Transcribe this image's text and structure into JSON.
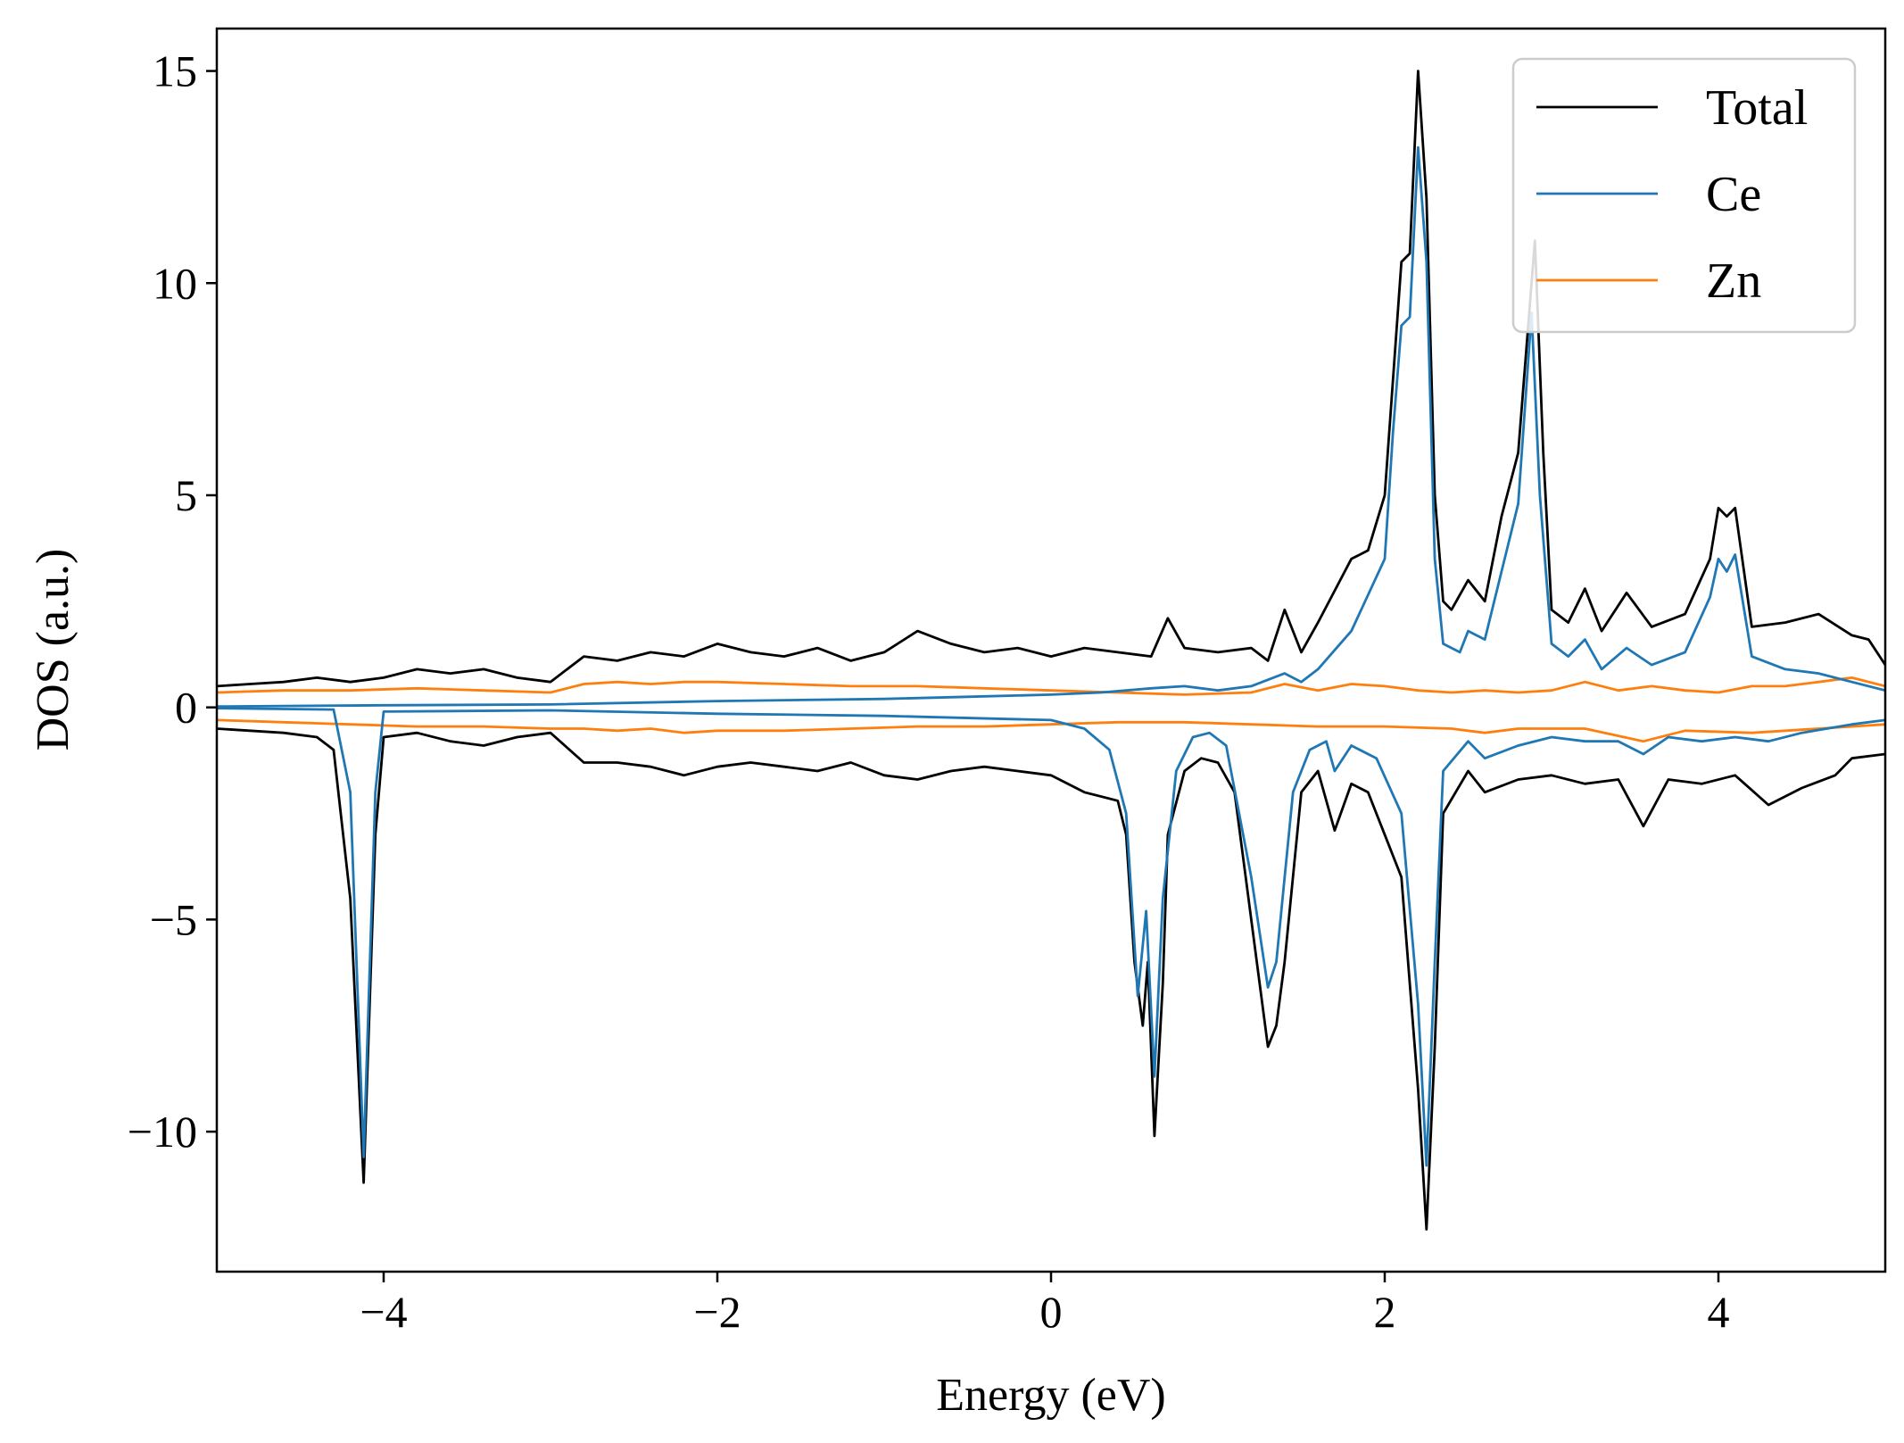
{
  "chart_data": {
    "type": "line",
    "xlabel": "Energy (eV)",
    "ylabel": "DOS (a.u.)",
    "xlim": [
      -5,
      5
    ],
    "ylim": [
      -13.3,
      16.0
    ],
    "x_ticks": [
      -4,
      -2,
      0,
      2,
      4
    ],
    "x_tick_labels": [
      "−4",
      "−2",
      "0",
      "2",
      "4"
    ],
    "y_ticks": [
      -10,
      -5,
      0,
      5,
      10,
      15
    ],
    "y_tick_labels": [
      "−10",
      "−5",
      "0",
      "5",
      "10",
      "15"
    ],
    "grid": false,
    "legend_position": "top-right",
    "legend": [
      "Total",
      "Ce",
      "Zn"
    ],
    "colors": {
      "Total": "#000000",
      "Ce": "#1f77b4",
      "Zn": "#ff7f0e"
    },
    "series": [
      {
        "name": "Total",
        "color": "#000000",
        "spin_up": [
          [
            -5.0,
            0.5
          ],
          [
            -4.8,
            0.55
          ],
          [
            -4.6,
            0.6
          ],
          [
            -4.4,
            0.7
          ],
          [
            -4.2,
            0.6
          ],
          [
            -4.0,
            0.7
          ],
          [
            -3.8,
            0.9
          ],
          [
            -3.6,
            0.8
          ],
          [
            -3.4,
            0.9
          ],
          [
            -3.2,
            0.7
          ],
          [
            -3.0,
            0.6
          ],
          [
            -2.8,
            1.2
          ],
          [
            -2.6,
            1.1
          ],
          [
            -2.4,
            1.3
          ],
          [
            -2.2,
            1.2
          ],
          [
            -2.0,
            1.5
          ],
          [
            -1.8,
            1.3
          ],
          [
            -1.6,
            1.2
          ],
          [
            -1.4,
            1.4
          ],
          [
            -1.2,
            1.1
          ],
          [
            -1.0,
            1.3
          ],
          [
            -0.8,
            1.8
          ],
          [
            -0.6,
            1.5
          ],
          [
            -0.4,
            1.3
          ],
          [
            -0.2,
            1.4
          ],
          [
            0.0,
            1.2
          ],
          [
            0.2,
            1.4
          ],
          [
            0.4,
            1.3
          ],
          [
            0.6,
            1.2
          ],
          [
            0.7,
            2.1
          ],
          [
            0.8,
            1.4
          ],
          [
            1.0,
            1.3
          ],
          [
            1.2,
            1.4
          ],
          [
            1.3,
            1.1
          ],
          [
            1.4,
            2.3
          ],
          [
            1.5,
            1.3
          ],
          [
            1.6,
            2.0
          ],
          [
            1.8,
            3.5
          ],
          [
            1.9,
            3.7
          ],
          [
            2.0,
            5.0
          ],
          [
            2.1,
            10.5
          ],
          [
            2.15,
            10.7
          ],
          [
            2.2,
            15.0
          ],
          [
            2.25,
            12.0
          ],
          [
            2.3,
            5.0
          ],
          [
            2.35,
            2.5
          ],
          [
            2.4,
            2.3
          ],
          [
            2.5,
            3.0
          ],
          [
            2.6,
            2.5
          ],
          [
            2.7,
            4.5
          ],
          [
            2.8,
            6.0
          ],
          [
            2.9,
            11.0
          ],
          [
            2.95,
            6.0
          ],
          [
            3.0,
            2.3
          ],
          [
            3.1,
            2.0
          ],
          [
            3.2,
            2.8
          ],
          [
            3.3,
            1.8
          ],
          [
            3.45,
            2.7
          ],
          [
            3.6,
            1.9
          ],
          [
            3.8,
            2.2
          ],
          [
            3.95,
            3.5
          ],
          [
            4.0,
            4.7
          ],
          [
            4.05,
            4.5
          ],
          [
            4.1,
            4.7
          ],
          [
            4.2,
            1.9
          ],
          [
            4.4,
            2.0
          ],
          [
            4.6,
            2.2
          ],
          [
            4.8,
            1.7
          ],
          [
            4.9,
            1.6
          ],
          [
            5.0,
            1.0
          ]
        ],
        "spin_down": [
          [
            -5.0,
            -0.5
          ],
          [
            -4.6,
            -0.6
          ],
          [
            -4.4,
            -0.7
          ],
          [
            -4.3,
            -1.0
          ],
          [
            -4.2,
            -4.5
          ],
          [
            -4.12,
            -11.2
          ],
          [
            -4.05,
            -3.0
          ],
          [
            -4.0,
            -0.7
          ],
          [
            -3.8,
            -0.6
          ],
          [
            -3.6,
            -0.8
          ],
          [
            -3.4,
            -0.9
          ],
          [
            -3.2,
            -0.7
          ],
          [
            -3.0,
            -0.6
          ],
          [
            -2.8,
            -1.3
          ],
          [
            -2.6,
            -1.3
          ],
          [
            -2.4,
            -1.4
          ],
          [
            -2.2,
            -1.6
          ],
          [
            -2.0,
            -1.4
          ],
          [
            -1.8,
            -1.3
          ],
          [
            -1.6,
            -1.4
          ],
          [
            -1.4,
            -1.5
          ],
          [
            -1.2,
            -1.3
          ],
          [
            -1.0,
            -1.6
          ],
          [
            -0.8,
            -1.7
          ],
          [
            -0.6,
            -1.5
          ],
          [
            -0.4,
            -1.4
          ],
          [
            -0.2,
            -1.5
          ],
          [
            0.0,
            -1.6
          ],
          [
            0.2,
            -2.0
          ],
          [
            0.4,
            -2.2
          ],
          [
            0.45,
            -3.0
          ],
          [
            0.5,
            -6.0
          ],
          [
            0.55,
            -7.5
          ],
          [
            0.58,
            -6.0
          ],
          [
            0.62,
            -10.1
          ],
          [
            0.67,
            -6.5
          ],
          [
            0.7,
            -3.0
          ],
          [
            0.8,
            -1.5
          ],
          [
            0.9,
            -1.2
          ],
          [
            1.0,
            -1.3
          ],
          [
            1.1,
            -2.0
          ],
          [
            1.2,
            -5.0
          ],
          [
            1.3,
            -8.0
          ],
          [
            1.35,
            -7.5
          ],
          [
            1.4,
            -6.0
          ],
          [
            1.5,
            -2.0
          ],
          [
            1.6,
            -1.5
          ],
          [
            1.7,
            -2.9
          ],
          [
            1.8,
            -1.8
          ],
          [
            1.9,
            -2.0
          ],
          [
            2.0,
            -3.0
          ],
          [
            2.1,
            -4.0
          ],
          [
            2.2,
            -9.0
          ],
          [
            2.25,
            -12.3
          ],
          [
            2.3,
            -8.0
          ],
          [
            2.35,
            -2.5
          ],
          [
            2.5,
            -1.5
          ],
          [
            2.6,
            -2.0
          ],
          [
            2.8,
            -1.7
          ],
          [
            3.0,
            -1.6
          ],
          [
            3.2,
            -1.8
          ],
          [
            3.4,
            -1.7
          ],
          [
            3.55,
            -2.8
          ],
          [
            3.7,
            -1.7
          ],
          [
            3.9,
            -1.8
          ],
          [
            4.1,
            -1.6
          ],
          [
            4.3,
            -2.3
          ],
          [
            4.5,
            -1.9
          ],
          [
            4.7,
            -1.6
          ],
          [
            4.8,
            -1.2
          ],
          [
            5.0,
            -1.1
          ]
        ]
      },
      {
        "name": "Ce",
        "color": "#1f77b4",
        "spin_up": [
          [
            -5.0,
            0.02
          ],
          [
            -4.0,
            0.05
          ],
          [
            -3.0,
            0.07
          ],
          [
            -2.0,
            0.15
          ],
          [
            -1.0,
            0.2
          ],
          [
            -0.5,
            0.25
          ],
          [
            0.0,
            0.3
          ],
          [
            0.3,
            0.35
          ],
          [
            0.6,
            0.45
          ],
          [
            0.8,
            0.5
          ],
          [
            1.0,
            0.4
          ],
          [
            1.2,
            0.5
          ],
          [
            1.4,
            0.8
          ],
          [
            1.5,
            0.6
          ],
          [
            1.6,
            0.9
          ],
          [
            1.8,
            1.8
          ],
          [
            2.0,
            3.5
          ],
          [
            2.05,
            6.5
          ],
          [
            2.1,
            9.0
          ],
          [
            2.15,
            9.2
          ],
          [
            2.2,
            13.2
          ],
          [
            2.25,
            10.5
          ],
          [
            2.3,
            3.5
          ],
          [
            2.35,
            1.5
          ],
          [
            2.45,
            1.3
          ],
          [
            2.5,
            1.8
          ],
          [
            2.6,
            1.6
          ],
          [
            2.7,
            3.2
          ],
          [
            2.8,
            4.8
          ],
          [
            2.88,
            9.3
          ],
          [
            2.93,
            5.0
          ],
          [
            3.0,
            1.5
          ],
          [
            3.1,
            1.2
          ],
          [
            3.2,
            1.6
          ],
          [
            3.3,
            0.9
          ],
          [
            3.45,
            1.4
          ],
          [
            3.6,
            1.0
          ],
          [
            3.8,
            1.3
          ],
          [
            3.95,
            2.6
          ],
          [
            4.0,
            3.5
          ],
          [
            4.05,
            3.2
          ],
          [
            4.1,
            3.6
          ],
          [
            4.2,
            1.2
          ],
          [
            4.4,
            0.9
          ],
          [
            4.6,
            0.8
          ],
          [
            4.8,
            0.6
          ],
          [
            5.0,
            0.4
          ]
        ],
        "spin_down": [
          [
            -5.0,
            -0.02
          ],
          [
            -4.3,
            -0.05
          ],
          [
            -4.2,
            -2.0
          ],
          [
            -4.12,
            -10.6
          ],
          [
            -4.05,
            -2.0
          ],
          [
            -4.0,
            -0.1
          ],
          [
            -3.0,
            -0.07
          ],
          [
            -2.0,
            -0.15
          ],
          [
            -1.0,
            -0.2
          ],
          [
            0.0,
            -0.3
          ],
          [
            0.2,
            -0.5
          ],
          [
            0.35,
            -1.0
          ],
          [
            0.45,
            -2.5
          ],
          [
            0.52,
            -6.8
          ],
          [
            0.57,
            -4.8
          ],
          [
            0.62,
            -8.7
          ],
          [
            0.67,
            -4.5
          ],
          [
            0.75,
            -1.5
          ],
          [
            0.85,
            -0.7
          ],
          [
            0.95,
            -0.6
          ],
          [
            1.05,
            -0.9
          ],
          [
            1.2,
            -4.0
          ],
          [
            1.3,
            -6.6
          ],
          [
            1.35,
            -6.0
          ],
          [
            1.45,
            -2.0
          ],
          [
            1.55,
            -1.0
          ],
          [
            1.65,
            -0.8
          ],
          [
            1.7,
            -1.5
          ],
          [
            1.8,
            -0.9
          ],
          [
            1.95,
            -1.2
          ],
          [
            2.1,
            -2.5
          ],
          [
            2.2,
            -7.0
          ],
          [
            2.25,
            -10.8
          ],
          [
            2.3,
            -6.0
          ],
          [
            2.35,
            -1.5
          ],
          [
            2.5,
            -0.8
          ],
          [
            2.6,
            -1.2
          ],
          [
            2.8,
            -0.9
          ],
          [
            3.0,
            -0.7
          ],
          [
            3.2,
            -0.8
          ],
          [
            3.4,
            -0.8
          ],
          [
            3.55,
            -1.1
          ],
          [
            3.7,
            -0.7
          ],
          [
            3.9,
            -0.8
          ],
          [
            4.1,
            -0.7
          ],
          [
            4.3,
            -0.8
          ],
          [
            4.5,
            -0.6
          ],
          [
            4.8,
            -0.4
          ],
          [
            5.0,
            -0.3
          ]
        ]
      },
      {
        "name": "Zn",
        "color": "#ff7f0e",
        "spin_up": [
          [
            -5.0,
            0.35
          ],
          [
            -4.6,
            0.4
          ],
          [
            -4.2,
            0.4
          ],
          [
            -3.8,
            0.45
          ],
          [
            -3.4,
            0.4
          ],
          [
            -3.0,
            0.35
          ],
          [
            -2.8,
            0.55
          ],
          [
            -2.6,
            0.6
          ],
          [
            -2.4,
            0.55
          ],
          [
            -2.2,
            0.6
          ],
          [
            -2.0,
            0.6
          ],
          [
            -1.6,
            0.55
          ],
          [
            -1.2,
            0.5
          ],
          [
            -0.8,
            0.5
          ],
          [
            -0.4,
            0.45
          ],
          [
            0.0,
            0.4
          ],
          [
            0.4,
            0.35
          ],
          [
            0.8,
            0.3
          ],
          [
            1.2,
            0.35
          ],
          [
            1.4,
            0.55
          ],
          [
            1.6,
            0.4
          ],
          [
            1.8,
            0.55
          ],
          [
            2.0,
            0.5
          ],
          [
            2.2,
            0.4
          ],
          [
            2.4,
            0.35
          ],
          [
            2.6,
            0.4
          ],
          [
            2.8,
            0.35
          ],
          [
            3.0,
            0.4
          ],
          [
            3.2,
            0.6
          ],
          [
            3.4,
            0.4
          ],
          [
            3.6,
            0.5
          ],
          [
            3.8,
            0.4
          ],
          [
            4.0,
            0.35
          ],
          [
            4.2,
            0.5
          ],
          [
            4.4,
            0.5
          ],
          [
            4.6,
            0.6
          ],
          [
            4.8,
            0.7
          ],
          [
            5.0,
            0.5
          ]
        ],
        "spin_down": [
          [
            -5.0,
            -0.3
          ],
          [
            -4.6,
            -0.35
          ],
          [
            -4.2,
            -0.4
          ],
          [
            -3.8,
            -0.45
          ],
          [
            -3.4,
            -0.45
          ],
          [
            -3.0,
            -0.5
          ],
          [
            -2.8,
            -0.5
          ],
          [
            -2.6,
            -0.55
          ],
          [
            -2.4,
            -0.5
          ],
          [
            -2.2,
            -0.6
          ],
          [
            -2.0,
            -0.55
          ],
          [
            -1.6,
            -0.55
          ],
          [
            -1.2,
            -0.5
          ],
          [
            -0.8,
            -0.45
          ],
          [
            -0.4,
            -0.45
          ],
          [
            0.0,
            -0.4
          ],
          [
            0.4,
            -0.35
          ],
          [
            0.8,
            -0.35
          ],
          [
            1.2,
            -0.4
          ],
          [
            1.6,
            -0.45
          ],
          [
            2.0,
            -0.45
          ],
          [
            2.4,
            -0.5
          ],
          [
            2.6,
            -0.6
          ],
          [
            2.8,
            -0.5
          ],
          [
            3.2,
            -0.5
          ],
          [
            3.55,
            -0.8
          ],
          [
            3.8,
            -0.55
          ],
          [
            4.2,
            -0.6
          ],
          [
            4.6,
            -0.5
          ],
          [
            4.8,
            -0.45
          ],
          [
            5.0,
            -0.4
          ]
        ]
      }
    ]
  }
}
